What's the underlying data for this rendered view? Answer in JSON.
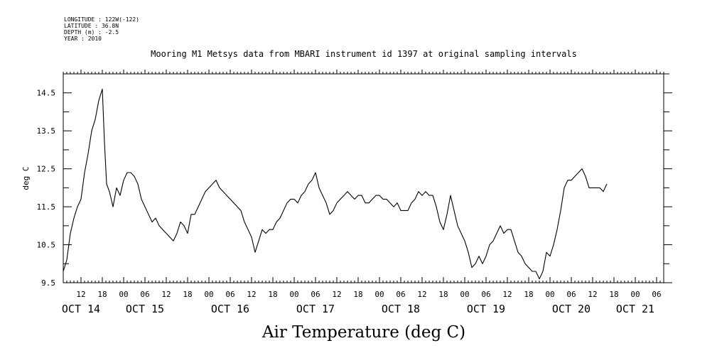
{
  "meta": {
    "longitude": "LONGITUDE : 122W(-122)",
    "latitude": "LATITUDE : 36.8N",
    "depth": "DEPTH (m) : -2.5",
    "year": "YEAR : 2010"
  },
  "chart_data": {
    "type": "line",
    "title": "Mooring M1 Metsys data from MBARI instrument id 1397 at original sampling intervals",
    "xlabel": "Air Temperature (deg C)",
    "ylabel": "deg C",
    "ylim": [
      9.5,
      15.0
    ],
    "xlim": [
      7.0,
      176.0
    ],
    "x_unit": "hours since OCT 14 00:00",
    "y_ticks": [
      "9.5",
      "10.5",
      "11.5",
      "12.5",
      "13.5",
      "14.5"
    ],
    "x_tick_hours": [
      12,
      18,
      24,
      30,
      36,
      42,
      48,
      54,
      60,
      66,
      72,
      78,
      84,
      90,
      96,
      102,
      108,
      114,
      120,
      126,
      132,
      138,
      144,
      150,
      156,
      162,
      168,
      174
    ],
    "x_tick_labels": [
      "12",
      "18",
      "00",
      "06",
      "12",
      "18",
      "00",
      "06",
      "12",
      "18",
      "00",
      "06",
      "12",
      "18",
      "00",
      "06",
      "12",
      "18",
      "00",
      "06",
      "12",
      "18",
      "00",
      "06",
      "12",
      "18",
      "00",
      "06"
    ],
    "day_labels": [
      {
        "hour": 12,
        "label": "OCT 14"
      },
      {
        "hour": 30,
        "label": "OCT 15"
      },
      {
        "hour": 54,
        "label": "OCT 16"
      },
      {
        "hour": 78,
        "label": "OCT 17"
      },
      {
        "hour": 102,
        "label": "OCT 18"
      },
      {
        "hour": 126,
        "label": "OCT 19"
      },
      {
        "hour": 150,
        "label": "OCT 20"
      },
      {
        "hour": 168,
        "label": "OCT 21"
      }
    ],
    "grid": false,
    "series": [
      {
        "points": [
          [
            7.0,
            9.8
          ],
          [
            8.0,
            10.1
          ],
          [
            9.0,
            10.8
          ],
          [
            10.0,
            11.2
          ],
          [
            11.0,
            11.5
          ],
          [
            12.0,
            11.7
          ],
          [
            13.0,
            12.4
          ],
          [
            14.0,
            12.9
          ],
          [
            15.0,
            13.5
          ],
          [
            16.0,
            13.8
          ],
          [
            17.0,
            14.3
          ],
          [
            18.0,
            14.6
          ],
          [
            18.6,
            13.2
          ],
          [
            19.2,
            12.1
          ],
          [
            20.0,
            11.9
          ],
          [
            21.0,
            11.5
          ],
          [
            22.0,
            12.0
          ],
          [
            23.0,
            11.8
          ],
          [
            24.0,
            12.2
          ],
          [
            25.0,
            12.4
          ],
          [
            26.0,
            12.4
          ],
          [
            27.0,
            12.3
          ],
          [
            28.0,
            12.1
          ],
          [
            29.0,
            11.7
          ],
          [
            30.0,
            11.5
          ],
          [
            31.0,
            11.3
          ],
          [
            32.0,
            11.1
          ],
          [
            33.0,
            11.2
          ],
          [
            34.0,
            11.0
          ],
          [
            35.0,
            10.9
          ],
          [
            36.0,
            10.8
          ],
          [
            37.0,
            10.7
          ],
          [
            38.0,
            10.6
          ],
          [
            39.0,
            10.8
          ],
          [
            40.0,
            11.1
          ],
          [
            41.0,
            11.0
          ],
          [
            42.0,
            10.8
          ],
          [
            43.0,
            11.3
          ],
          [
            44.0,
            11.3
          ],
          [
            45.0,
            11.5
          ],
          [
            46.0,
            11.7
          ],
          [
            47.0,
            11.9
          ],
          [
            48.0,
            12.0
          ],
          [
            49.0,
            12.1
          ],
          [
            50.0,
            12.2
          ],
          [
            51.0,
            12.0
          ],
          [
            52.0,
            11.9
          ],
          [
            53.0,
            11.8
          ],
          [
            54.0,
            11.7
          ],
          [
            55.0,
            11.6
          ],
          [
            56.0,
            11.5
          ],
          [
            57.0,
            11.4
          ],
          [
            58.0,
            11.1
          ],
          [
            59.0,
            10.9
          ],
          [
            60.0,
            10.7
          ],
          [
            61.0,
            10.3
          ],
          [
            62.0,
            10.6
          ],
          [
            63.0,
            10.9
          ],
          [
            64.0,
            10.8
          ],
          [
            65.0,
            10.9
          ],
          [
            66.0,
            10.9
          ],
          [
            67.0,
            11.1
          ],
          [
            68.0,
            11.2
          ],
          [
            69.0,
            11.4
          ],
          [
            70.0,
            11.6
          ],
          [
            71.0,
            11.7
          ],
          [
            72.0,
            11.7
          ],
          [
            73.0,
            11.6
          ],
          [
            74.0,
            11.8
          ],
          [
            75.0,
            11.9
          ],
          [
            76.0,
            12.1
          ],
          [
            77.0,
            12.2
          ],
          [
            78.0,
            12.4
          ],
          [
            79.0,
            12.0
          ],
          [
            80.0,
            11.8
          ],
          [
            81.0,
            11.6
          ],
          [
            82.0,
            11.3
          ],
          [
            83.0,
            11.4
          ],
          [
            84.0,
            11.6
          ],
          [
            85.0,
            11.7
          ],
          [
            86.0,
            11.8
          ],
          [
            87.0,
            11.9
          ],
          [
            88.0,
            11.8
          ],
          [
            89.0,
            11.7
          ],
          [
            90.0,
            11.8
          ],
          [
            91.0,
            11.8
          ],
          [
            92.0,
            11.6
          ],
          [
            93.0,
            11.6
          ],
          [
            94.0,
            11.7
          ],
          [
            95.0,
            11.8
          ],
          [
            96.0,
            11.8
          ],
          [
            97.0,
            11.7
          ],
          [
            98.0,
            11.7
          ],
          [
            99.0,
            11.6
          ],
          [
            100.0,
            11.5
          ],
          [
            101.0,
            11.6
          ],
          [
            102.0,
            11.4
          ],
          [
            103.0,
            11.4
          ],
          [
            104.0,
            11.4
          ],
          [
            105.0,
            11.6
          ],
          [
            106.0,
            11.7
          ],
          [
            107.0,
            11.9
          ],
          [
            108.0,
            11.8
          ],
          [
            109.0,
            11.9
          ],
          [
            110.0,
            11.8
          ],
          [
            111.0,
            11.8
          ],
          [
            112.0,
            11.5
          ],
          [
            113.0,
            11.1
          ],
          [
            114.0,
            10.9
          ],
          [
            115.0,
            11.3
          ],
          [
            116.0,
            11.8
          ],
          [
            117.0,
            11.4
          ],
          [
            118.0,
            11.0
          ],
          [
            119.0,
            10.8
          ],
          [
            120.0,
            10.6
          ],
          [
            121.0,
            10.3
          ],
          [
            122.0,
            9.9
          ],
          [
            123.0,
            10.0
          ],
          [
            124.0,
            10.2
          ],
          [
            125.0,
            10.0
          ],
          [
            126.0,
            10.2
          ],
          [
            127.0,
            10.5
          ],
          [
            128.0,
            10.6
          ],
          [
            129.0,
            10.8
          ],
          [
            130.0,
            11.0
          ],
          [
            131.0,
            10.8
          ],
          [
            132.0,
            10.9
          ],
          [
            133.0,
            10.9
          ],
          [
            134.0,
            10.6
          ],
          [
            135.0,
            10.3
          ],
          [
            136.0,
            10.2
          ],
          [
            137.0,
            10.0
          ],
          [
            138.0,
            9.9
          ],
          [
            139.0,
            9.8
          ],
          [
            140.0,
            9.8
          ],
          [
            141.0,
            9.6
          ],
          [
            142.0,
            9.8
          ],
          [
            143.0,
            10.3
          ],
          [
            144.0,
            10.2
          ],
          [
            145.0,
            10.5
          ],
          [
            146.0,
            10.9
          ],
          [
            147.0,
            11.4
          ],
          [
            148.0,
            12.0
          ],
          [
            149.0,
            12.2
          ],
          [
            150.0,
            12.2
          ],
          [
            151.0,
            12.3
          ],
          [
            152.0,
            12.4
          ],
          [
            153.0,
            12.5
          ],
          [
            154.0,
            12.3
          ],
          [
            155.0,
            12.0
          ],
          [
            156.0,
            12.0
          ],
          [
            157.0,
            12.0
          ],
          [
            158.0,
            12.0
          ],
          [
            159.0,
            11.9
          ],
          [
            160.0,
            12.1
          ]
        ]
      }
    ]
  }
}
